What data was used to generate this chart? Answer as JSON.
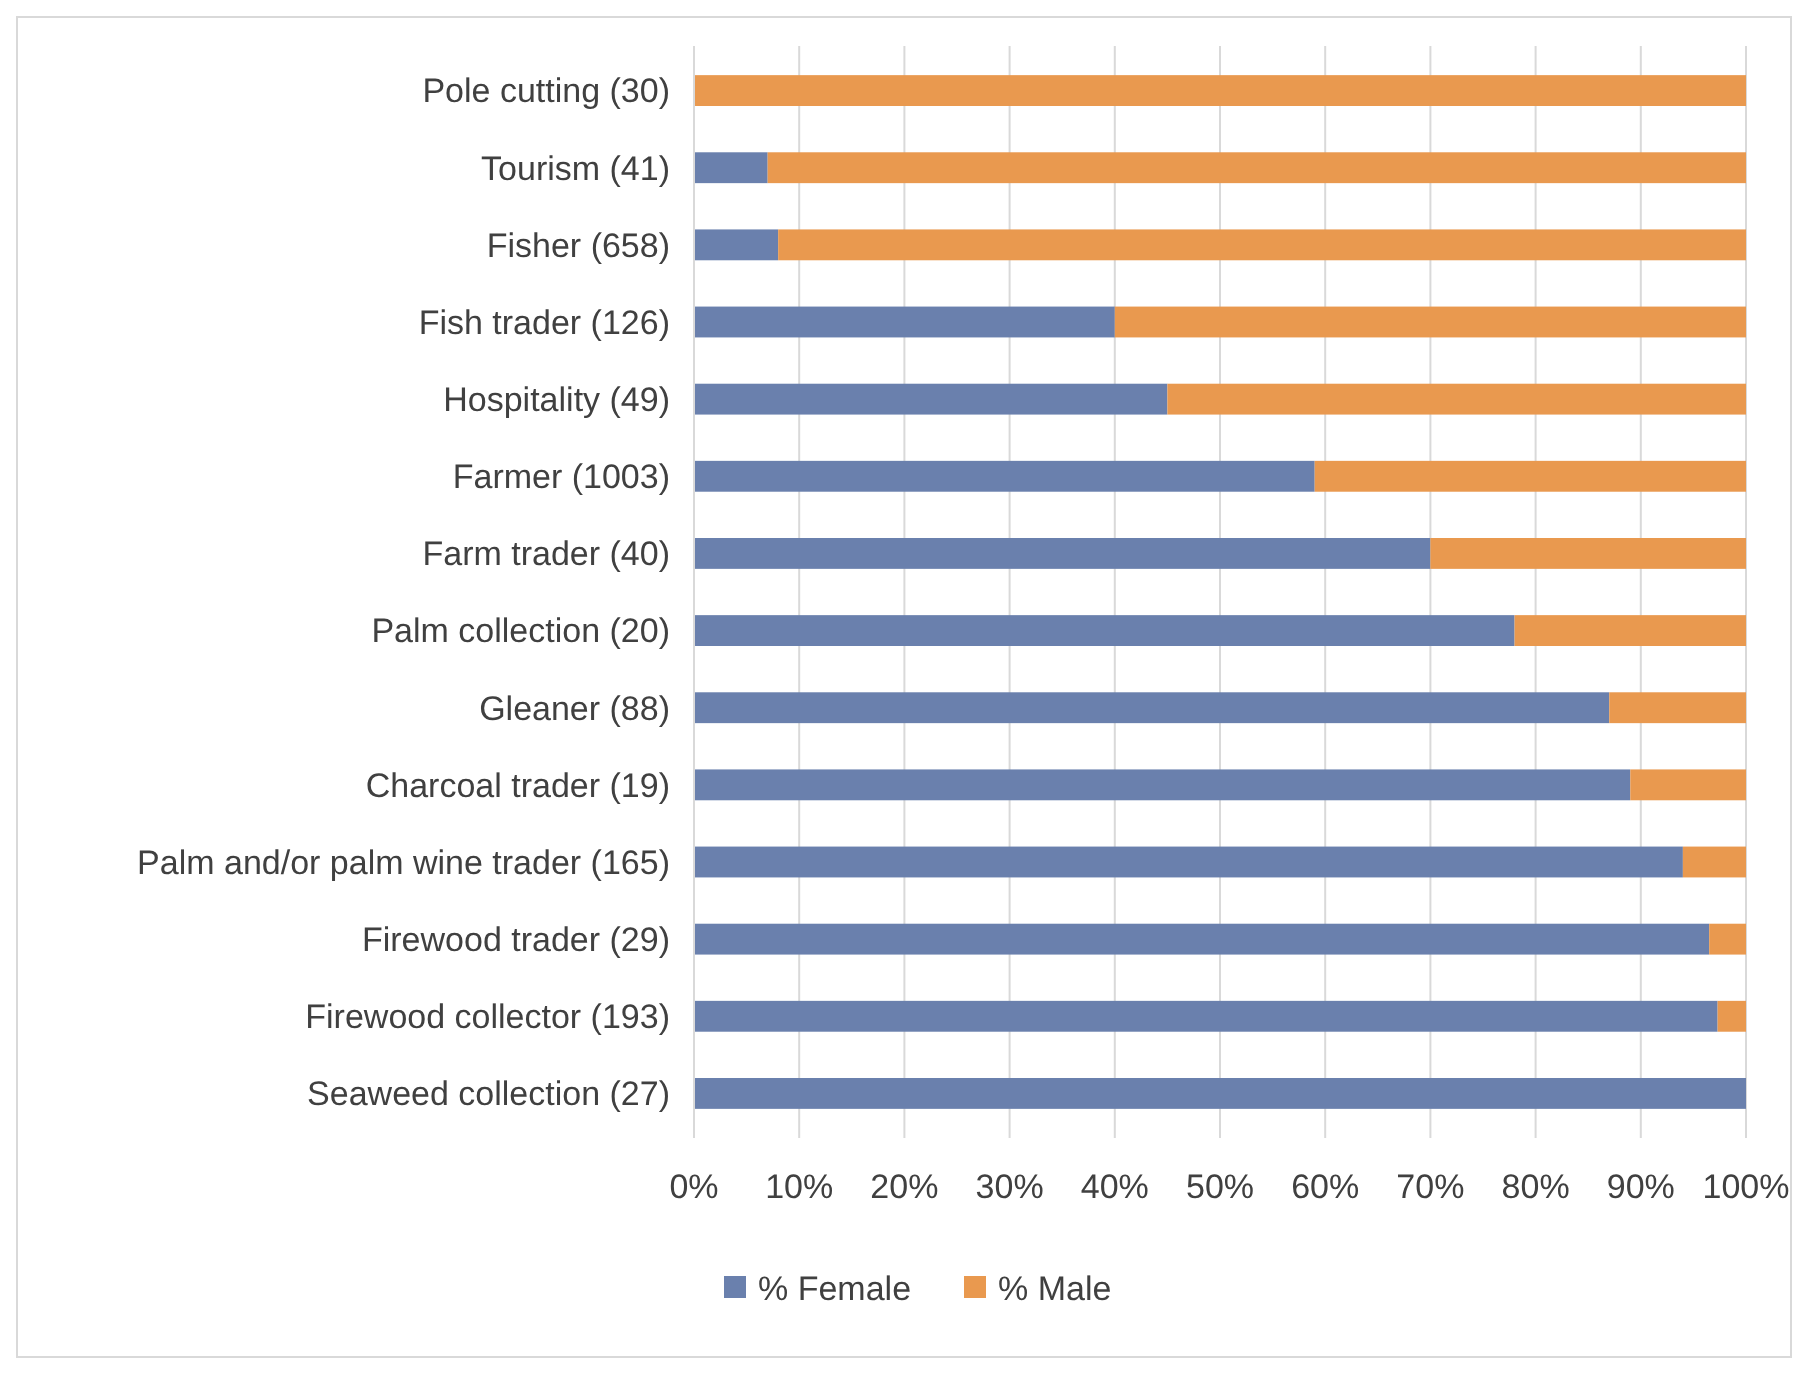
{
  "chart_data": {
    "type": "bar",
    "orientation": "horizontal",
    "stacked": true,
    "categories": [
      "Pole cutting (30)",
      "Tourism (41)",
      "Fisher (658)",
      "Fish trader (126)",
      "Hospitality (49)",
      "Farmer (1003)",
      "Farm trader (40)",
      "Palm collection (20)",
      "Gleaner (88)",
      "Charcoal trader (19)",
      "Palm and/or palm wine trader (165)",
      "Firewood trader (29)",
      "Firewood collector (193)",
      "Seaweed collection (27)"
    ],
    "series": [
      {
        "name": "% Female",
        "color": "#6a80ad",
        "values": [
          0,
          7,
          8,
          40,
          45,
          59,
          70,
          78,
          87,
          89,
          94,
          96.5,
          97.3,
          100
        ]
      },
      {
        "name": "% Male",
        "color": "#e9994f",
        "values": [
          100,
          93,
          92,
          60,
          55,
          41,
          30,
          22,
          13,
          11,
          6,
          3.5,
          2.7,
          0
        ]
      }
    ],
    "xlim": [
      0,
      100
    ],
    "xticks": [
      {
        "value": 0,
        "label": "0%"
      },
      {
        "value": 10,
        "label": "10%"
      },
      {
        "value": 20,
        "label": "20%"
      },
      {
        "value": 30,
        "label": "30%"
      },
      {
        "value": 40,
        "label": "40%"
      },
      {
        "value": 50,
        "label": "50%"
      },
      {
        "value": 60,
        "label": "60%"
      },
      {
        "value": 70,
        "label": "70%"
      },
      {
        "value": 80,
        "label": "80%"
      },
      {
        "value": 90,
        "label": "90%"
      },
      {
        "value": 100,
        "label": "100%"
      }
    ],
    "grid": "x",
    "legend": "bottom"
  }
}
